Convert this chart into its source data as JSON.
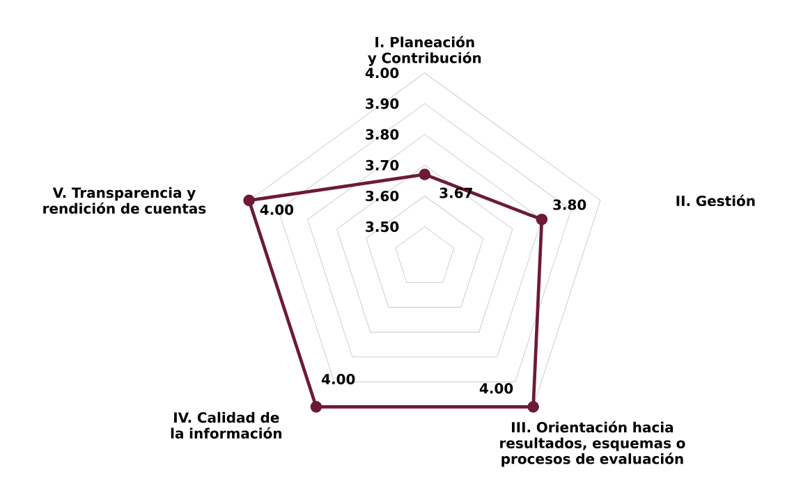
{
  "chart_data": {
    "type": "radar",
    "categories": [
      "I. Planeación y Contribución",
      "II. Gestión",
      "III. Orientación hacia resultados, esquemas o procesos de evaluación",
      "IV. Calidad de la información",
      "V. Transparencia y rendición de cuentas"
    ],
    "series": [
      {
        "color": "#6d1a36",
        "values": [
          3.67,
          3.8,
          4.0,
          4.0,
          4.0
        ],
        "value_labels": [
          "3.67",
          "3.80",
          "4.00",
          "4.00",
          "4.00"
        ]
      }
    ],
    "ylim": [
      3.4,
      4.0
    ],
    "yticks": [
      {
        "value": 3.5,
        "label": "3.50"
      },
      {
        "value": 3.6,
        "label": "3.60"
      },
      {
        "value": 3.7,
        "label": "3.70"
      },
      {
        "value": 3.8,
        "label": "3.80"
      },
      {
        "value": 3.9,
        "label": "3.90"
      },
      {
        "value": 4.0,
        "label": "4.00"
      }
    ],
    "grid": true,
    "marker": "circle"
  }
}
